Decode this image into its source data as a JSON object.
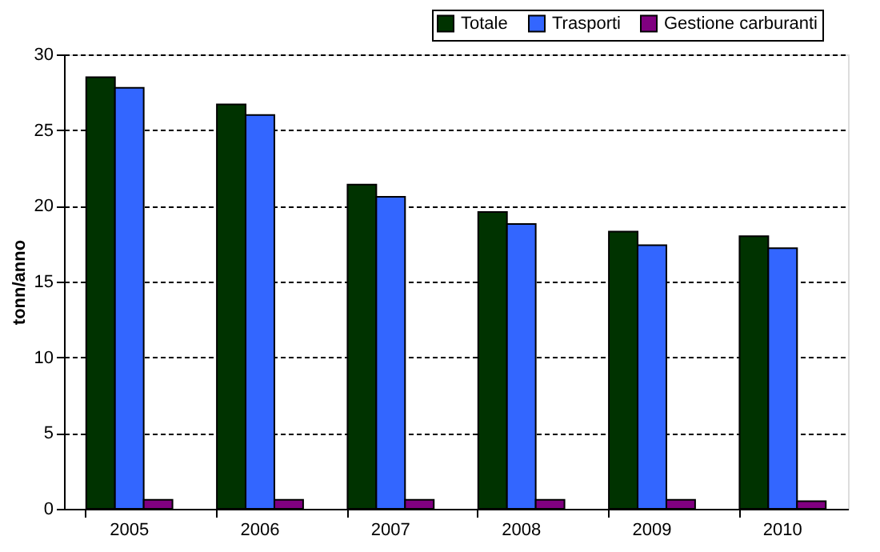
{
  "chart_data": {
    "type": "bar",
    "ylabel": "tonn/anno",
    "categories": [
      "2005",
      "2006",
      "2007",
      "2008",
      "2009",
      "2010"
    ],
    "series": [
      {
        "name": "Totale",
        "color": "#003300",
        "values": [
          28.5,
          26.7,
          21.4,
          19.6,
          18.3,
          18.0
        ]
      },
      {
        "name": "Trasporti",
        "color": "#3366ff",
        "values": [
          27.8,
          26.0,
          20.6,
          18.8,
          17.4,
          17.2
        ]
      },
      {
        "name": "Gestione carburanti",
        "color": "#800080",
        "values": [
          0.6,
          0.6,
          0.6,
          0.6,
          0.6,
          0.5
        ]
      }
    ],
    "ylim": [
      0,
      30
    ],
    "yticks": [
      0,
      5,
      10,
      15,
      20,
      25,
      30
    ],
    "grid": "y",
    "legend": "top right"
  }
}
